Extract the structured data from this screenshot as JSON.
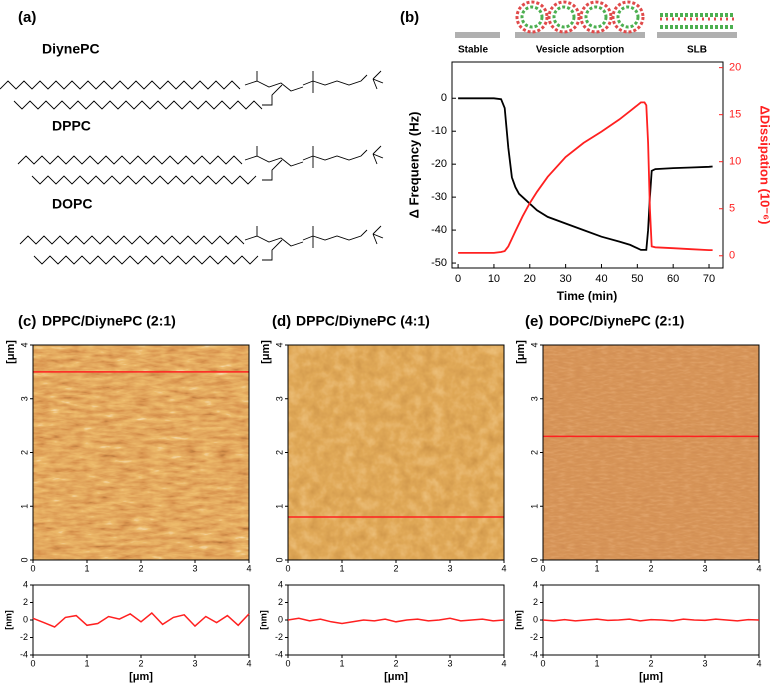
{
  "panel_a": {
    "label": "(a)",
    "lipids": [
      "DiynePC",
      "DPPC",
      "DOPC"
    ]
  },
  "chart_data": {
    "type": "line",
    "panel_label": "(b)",
    "stages": [
      "Stable",
      "Vesicle adsorption",
      "SLB"
    ],
    "xlabel": "Time (min)",
    "ylabel": "Δ Frequency (Hz)",
    "y2label": "ΔDissipation (10⁻⁶)",
    "x": [
      0,
      5,
      10,
      12,
      13,
      14,
      15,
      16,
      17,
      18,
      20,
      22,
      25,
      30,
      35,
      40,
      45,
      48,
      50,
      51,
      52,
      52.5,
      53,
      53.5,
      54,
      55,
      60,
      65,
      70,
      71
    ],
    "series": [
      {
        "color": "#000000",
        "values": [
          0,
          0,
          0,
          -0.3,
          -3,
          -15,
          -24,
          -27,
          -29,
          -30,
          -32,
          -34,
          -36,
          -38,
          -40,
          -42,
          -43.5,
          -44.5,
          -45.5,
          -46,
          -46,
          -46,
          -40,
          -30,
          -22,
          -21.5,
          -21.2,
          -21,
          -20.8,
          -20.7
        ]
      },
      {
        "color": "#ff2020",
        "axis": "y2",
        "values": [
          0.3,
          0.3,
          0.3,
          0.4,
          0.5,
          1,
          1.8,
          2.6,
          3.4,
          4.2,
          5.6,
          6.8,
          8.4,
          10.5,
          12,
          13.2,
          14.5,
          15.4,
          16,
          16.3,
          16.3,
          16,
          12,
          5,
          1,
          0.9,
          0.8,
          0.7,
          0.6,
          0.6
        ]
      }
    ],
    "xlim": [
      -1.7,
      73.9
    ],
    "xticks": [
      0,
      10,
      20,
      30,
      40,
      50,
      60,
      70
    ],
    "ylim": [
      -51.5,
      11
    ],
    "yticks": [
      -50,
      -40,
      -30,
      -20,
      -10,
      0
    ],
    "y2lim": [
      -1.3,
      20.6
    ],
    "y2ticks": [
      0,
      5,
      10,
      15,
      20
    ]
  },
  "afm_panels": [
    {
      "label": "(c)",
      "title": "DPPC/DiynePC (2:1)",
      "image_label": "[μm]",
      "ticks": [
        0,
        1,
        2,
        3,
        4
      ],
      "lim": [
        0,
        4
      ],
      "profile_y": 3.5,
      "profile": {
        "type": "line",
        "color": "#ff2020",
        "xlabel": "[μm]",
        "ylabel": "[nm]",
        "x": [
          0,
          0.2,
          0.4,
          0.6,
          0.8,
          1,
          1.2,
          1.4,
          1.6,
          1.8,
          2,
          2.2,
          2.4,
          2.6,
          2.8,
          3,
          3.2,
          3.4,
          3.6,
          3.8,
          4
        ],
        "values": [
          0.2,
          -0.3,
          -0.8,
          0.3,
          0.5,
          -0.6,
          -0.4,
          0.4,
          0.1,
          0.7,
          -0.2,
          0.8,
          -0.5,
          0.3,
          0.6,
          -0.7,
          0.4,
          -0.3,
          0.5,
          -0.6,
          0.7
        ],
        "xlim": [
          0,
          4
        ],
        "xticks": [
          0,
          1,
          2,
          3,
          4
        ],
        "ylim": [
          -4,
          4
        ],
        "yticks": [
          -4,
          -2,
          0,
          2,
          4
        ]
      }
    },
    {
      "label": "(d)",
      "title": "DPPC/DiynePC (4:1)",
      "image_label": "[μm]",
      "ticks": [
        0,
        1,
        2,
        3,
        4
      ],
      "lim": [
        0,
        4
      ],
      "profile_y": 0.8,
      "profile": {
        "type": "line",
        "color": "#ff2020",
        "xlabel": "[μm]",
        "ylabel": "[nm]",
        "x": [
          0,
          0.2,
          0.4,
          0.6,
          0.8,
          1,
          1.2,
          1.4,
          1.6,
          1.8,
          2,
          2.2,
          2.4,
          2.6,
          2.8,
          3,
          3.2,
          3.4,
          3.6,
          3.8,
          4
        ],
        "values": [
          0,
          0.2,
          -0.1,
          0.1,
          -0.2,
          -0.4,
          -0.2,
          0,
          -0.1,
          0.1,
          -0.2,
          0,
          0.1,
          -0.1,
          0,
          0.2,
          -0.1,
          0,
          0.1,
          -0.1,
          0
        ],
        "xlim": [
          0,
          4
        ],
        "xticks": [
          0,
          1,
          2,
          3,
          4
        ],
        "ylim": [
          -4,
          4
        ],
        "yticks": [
          -4,
          -2,
          0,
          2,
          4
        ]
      }
    },
    {
      "label": "(e)",
      "title": "DOPC/DiynePC (2:1)",
      "image_label": "[μm]",
      "ticks": [
        0,
        1,
        2,
        3,
        4
      ],
      "lim": [
        0,
        4
      ],
      "profile_y": 2.3,
      "profile": {
        "type": "line",
        "color": "#ff2020",
        "xlabel": "[μm]",
        "ylabel": "[nm]",
        "x": [
          0,
          0.2,
          0.4,
          0.6,
          0.8,
          1,
          1.2,
          1.4,
          1.6,
          1.8,
          2,
          2.2,
          2.4,
          2.6,
          2.8,
          3,
          3.2,
          3.4,
          3.6,
          3.8,
          4
        ],
        "values": [
          0,
          -0.1,
          0.05,
          -0.1,
          0,
          0.1,
          -0.05,
          0,
          0.1,
          -0.1,
          0.05,
          0,
          -0.1,
          0.1,
          0,
          -0.05,
          0.1,
          0,
          -0.1,
          0.05,
          0
        ],
        "xlim": [
          0,
          4
        ],
        "xticks": [
          0,
          1,
          2,
          3,
          4
        ],
        "ylim": [
          -4,
          4
        ],
        "yticks": [
          -4,
          -2,
          0,
          2,
          4
        ]
      }
    }
  ]
}
